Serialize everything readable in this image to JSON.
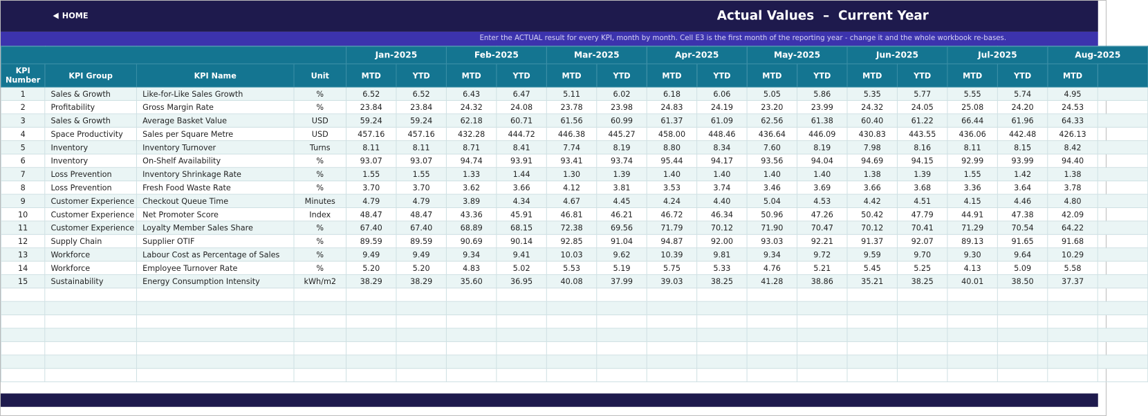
{
  "header": {
    "home": "HOME",
    "title": "Actual Values  –  Current Year",
    "note": "Enter the ACTUAL result for every KPI, month by month. Cell E3 is the first month of the reporting year - change it and the whole workbook re-bases."
  },
  "table": {
    "columns": [
      "KPI Number",
      "KPI Group",
      "KPI Name",
      "Unit"
    ],
    "months": [
      "Jan-2025",
      "Feb-2025",
      "Mar-2025",
      "Apr-2025",
      "May-2025",
      "Jun-2025",
      "Jul-2025",
      "Aug-2025"
    ],
    "subheaders": [
      "MTD",
      "YTD"
    ],
    "rows": [
      [
        "1",
        "Sales & Growth",
        "Like-for-Like Sales Growth",
        "%",
        "6.52",
        "6.52",
        "6.43",
        "6.47",
        "5.11",
        "6.02",
        "6.18",
        "6.06",
        "5.05",
        "5.86",
        "5.35",
        "5.77",
        "5.55",
        "5.74",
        "4.95"
      ],
      [
        "2",
        "Profitability",
        "Gross Margin Rate",
        "%",
        "23.84",
        "23.84",
        "24.32",
        "24.08",
        "23.78",
        "23.98",
        "24.83",
        "24.19",
        "23.20",
        "23.99",
        "24.32",
        "24.05",
        "25.08",
        "24.20",
        "24.53"
      ],
      [
        "3",
        "Sales & Growth",
        "Average Basket Value",
        "USD",
        "59.24",
        "59.24",
        "62.18",
        "60.71",
        "61.56",
        "60.99",
        "61.37",
        "61.09",
        "62.56",
        "61.38",
        "60.40",
        "61.22",
        "66.44",
        "61.96",
        "64.33"
      ],
      [
        "4",
        "Space Productivity",
        "Sales per Square Metre",
        "USD",
        "457.16",
        "457.16",
        "432.28",
        "444.72",
        "446.38",
        "445.27",
        "458.00",
        "448.46",
        "436.64",
        "446.09",
        "430.83",
        "443.55",
        "436.06",
        "442.48",
        "426.13"
      ],
      [
        "5",
        "Inventory",
        "Inventory Turnover",
        "Turns",
        "8.11",
        "8.11",
        "8.71",
        "8.41",
        "7.74",
        "8.19",
        "8.80",
        "8.34",
        "7.60",
        "8.19",
        "7.98",
        "8.16",
        "8.11",
        "8.15",
        "8.42"
      ],
      [
        "6",
        "Inventory",
        "On-Shelf Availability",
        "%",
        "93.07",
        "93.07",
        "94.74",
        "93.91",
        "93.41",
        "93.74",
        "95.44",
        "94.17",
        "93.56",
        "94.04",
        "94.69",
        "94.15",
        "92.99",
        "93.99",
        "94.40"
      ],
      [
        "7",
        "Loss Prevention",
        "Inventory Shrinkage Rate",
        "%",
        "1.55",
        "1.55",
        "1.33",
        "1.44",
        "1.30",
        "1.39",
        "1.40",
        "1.40",
        "1.40",
        "1.40",
        "1.38",
        "1.39",
        "1.55",
        "1.42",
        "1.38"
      ],
      [
        "8",
        "Loss Prevention",
        "Fresh Food Waste Rate",
        "%",
        "3.70",
        "3.70",
        "3.62",
        "3.66",
        "4.12",
        "3.81",
        "3.53",
        "3.74",
        "3.46",
        "3.69",
        "3.66",
        "3.68",
        "3.36",
        "3.64",
        "3.78"
      ],
      [
        "9",
        "Customer Experience",
        "Checkout Queue Time",
        "Minutes",
        "4.79",
        "4.79",
        "3.89",
        "4.34",
        "4.67",
        "4.45",
        "4.24",
        "4.40",
        "5.04",
        "4.53",
        "4.42",
        "4.51",
        "4.15",
        "4.46",
        "4.80"
      ],
      [
        "10",
        "Customer Experience",
        "Net Promoter Score",
        "Index",
        "48.47",
        "48.47",
        "43.36",
        "45.91",
        "46.81",
        "46.21",
        "46.72",
        "46.34",
        "50.96",
        "47.26",
        "50.42",
        "47.79",
        "44.91",
        "47.38",
        "42.09"
      ],
      [
        "11",
        "Customer Experience",
        "Loyalty Member Sales Share",
        "%",
        "67.40",
        "67.40",
        "68.89",
        "68.15",
        "72.38",
        "69.56",
        "71.79",
        "70.12",
        "71.90",
        "70.47",
        "70.12",
        "70.41",
        "71.29",
        "70.54",
        "64.22"
      ],
      [
        "12",
        "Supply Chain",
        "Supplier OTIF",
        "%",
        "89.59",
        "89.59",
        "90.69",
        "90.14",
        "92.85",
        "91.04",
        "94.87",
        "92.00",
        "93.03",
        "92.21",
        "91.37",
        "92.07",
        "89.13",
        "91.65",
        "91.68"
      ],
      [
        "13",
        "Workforce",
        "Labour Cost as Percentage of Sales",
        "%",
        "9.49",
        "9.49",
        "9.34",
        "9.41",
        "10.03",
        "9.62",
        "10.39",
        "9.81",
        "9.34",
        "9.72",
        "9.59",
        "9.70",
        "9.30",
        "9.64",
        "10.29"
      ],
      [
        "14",
        "Workforce",
        "Employee Turnover Rate",
        "%",
        "5.20",
        "5.20",
        "4.83",
        "5.02",
        "5.53",
        "5.19",
        "5.75",
        "5.33",
        "4.76",
        "5.21",
        "5.45",
        "5.25",
        "4.13",
        "5.09",
        "5.58"
      ],
      [
        "15",
        "Sustainability",
        "Energy Consumption Intensity",
        "kWh/m2",
        "38.29",
        "38.29",
        "35.60",
        "36.95",
        "40.08",
        "37.99",
        "39.03",
        "38.25",
        "41.28",
        "38.86",
        "35.21",
        "38.25",
        "40.01",
        "38.50",
        "37.37"
      ]
    ]
  }
}
